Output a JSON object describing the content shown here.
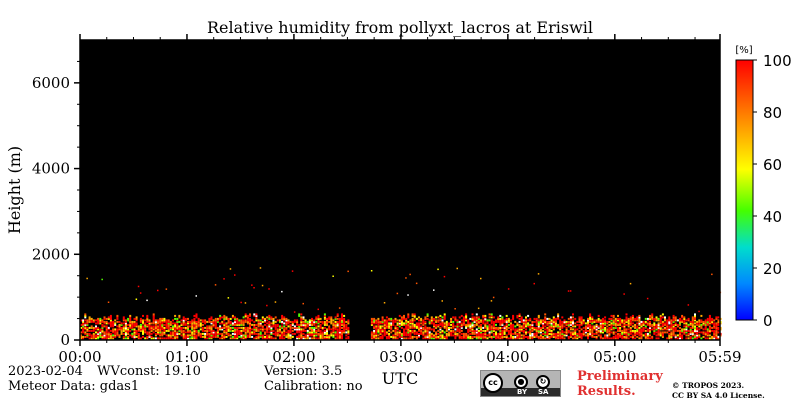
{
  "chart_data": {
    "type": "heatmap",
    "title": "Relative humidity from pollyxt_lacros at Eriswil",
    "xlabel": "UTC",
    "ylabel": "Height (m)",
    "x_range": [
      "00:00",
      "05:59"
    ],
    "x_ticks": [
      "00:00",
      "01:00",
      "02:00",
      "03:00",
      "04:00",
      "05:00",
      "05:59"
    ],
    "ylim": [
      0,
      7000
    ],
    "y_ticks": [
      0,
      2000,
      4000,
      6000
    ],
    "colorbar": {
      "unit": "[%]",
      "range": [
        0,
        100
      ],
      "ticks": [
        0,
        20,
        40,
        60,
        80,
        100
      ],
      "colors": [
        "#0000ff",
        "#00aaff",
        "#00ffaa",
        "#55ff00",
        "#ffff00",
        "#ffaa00",
        "#ff5500",
        "#ff0000"
      ]
    },
    "background": "#000000",
    "data_summary": {
      "humid_layer_top_m": 600,
      "humid_layer_typical_values": [
        50,
        100
      ],
      "data_gap_utc": [
        "02:31",
        "02:43"
      ],
      "sparse_signal_max_height_m": 1700
    }
  },
  "footer": {
    "date": "2023-02-04",
    "wvconst": "WVconst:  19.10",
    "meteor": "Meteor Data: gdas1",
    "version": "Version: 3.5",
    "calibration": "Calibration: no",
    "prelim_line1": "Preliminary",
    "prelim_line2": "Results.",
    "copyright_line1": "© TROPOS 2023.",
    "copyright_line2": "CC BY SA 4.0 License.",
    "license_badge": {
      "top": "cc",
      "by": "BY",
      "sa": "SA"
    }
  }
}
